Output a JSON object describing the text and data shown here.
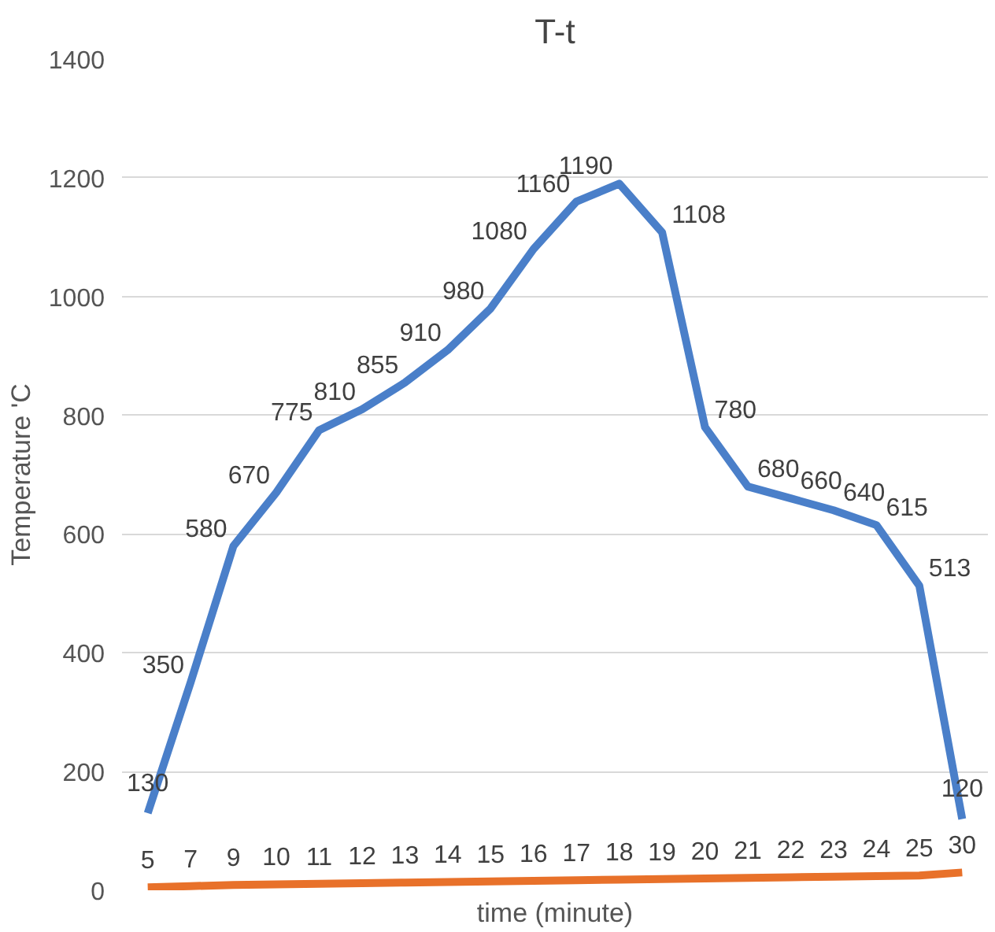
{
  "chart_data": {
    "type": "line",
    "title": "T-t",
    "xlabel": "time (minute)",
    "ylabel": "Temperature ʹC",
    "categories": [
      null,
      null,
      null,
      null,
      null,
      null,
      null,
      null,
      null,
      null,
      null,
      null,
      null,
      null,
      null,
      null,
      null,
      null,
      null,
      null
    ],
    "series": [
      {
        "color": "#4a7fc9",
        "values": [
          130,
          350,
          580,
          670,
          775,
          810,
          855,
          910,
          980,
          1080,
          1160,
          1190,
          1108,
          780,
          680,
          660,
          640,
          615,
          513,
          120
        ]
      },
      {
        "color": "#e8712a",
        "values": [
          5,
          7,
          9,
          10,
          11,
          12,
          13,
          14,
          15,
          16,
          17,
          18,
          19,
          20,
          21,
          22,
          23,
          24,
          25,
          30
        ]
      }
    ],
    "ylim": [
      0,
      1400
    ],
    "yticks": [
      0,
      200,
      400,
      600,
      800,
      1000,
      1200,
      1400
    ],
    "grid": "y",
    "marker": "none",
    "line_style": "solid",
    "data_labels": true
  }
}
